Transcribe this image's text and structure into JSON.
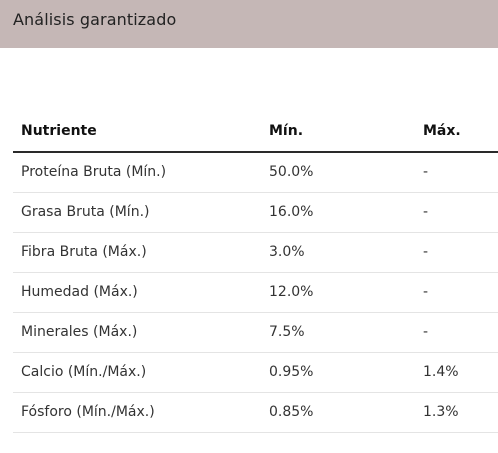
{
  "header": {
    "title": "Análisis garantizado"
  },
  "table": {
    "columns": [
      "Nutriente",
      "Mín.",
      "Máx."
    ],
    "rows": [
      [
        "Proteína Bruta (Mín.)",
        "50.0%",
        "-"
      ],
      [
        "Grasa Bruta (Mín.)",
        "16.0%",
        "-"
      ],
      [
        "Fibra Bruta (Máx.)",
        "3.0%",
        "-"
      ],
      [
        "Humedad (Máx.)",
        "12.0%",
        "-"
      ],
      [
        "Minerales (Máx.)",
        "7.5%",
        "-"
      ],
      [
        "Calcio (Mín./Máx.)",
        "0.95%",
        "1.4%"
      ],
      [
        "Fósforo (Mín./Máx.)",
        "0.85%",
        "1.3%"
      ]
    ]
  }
}
